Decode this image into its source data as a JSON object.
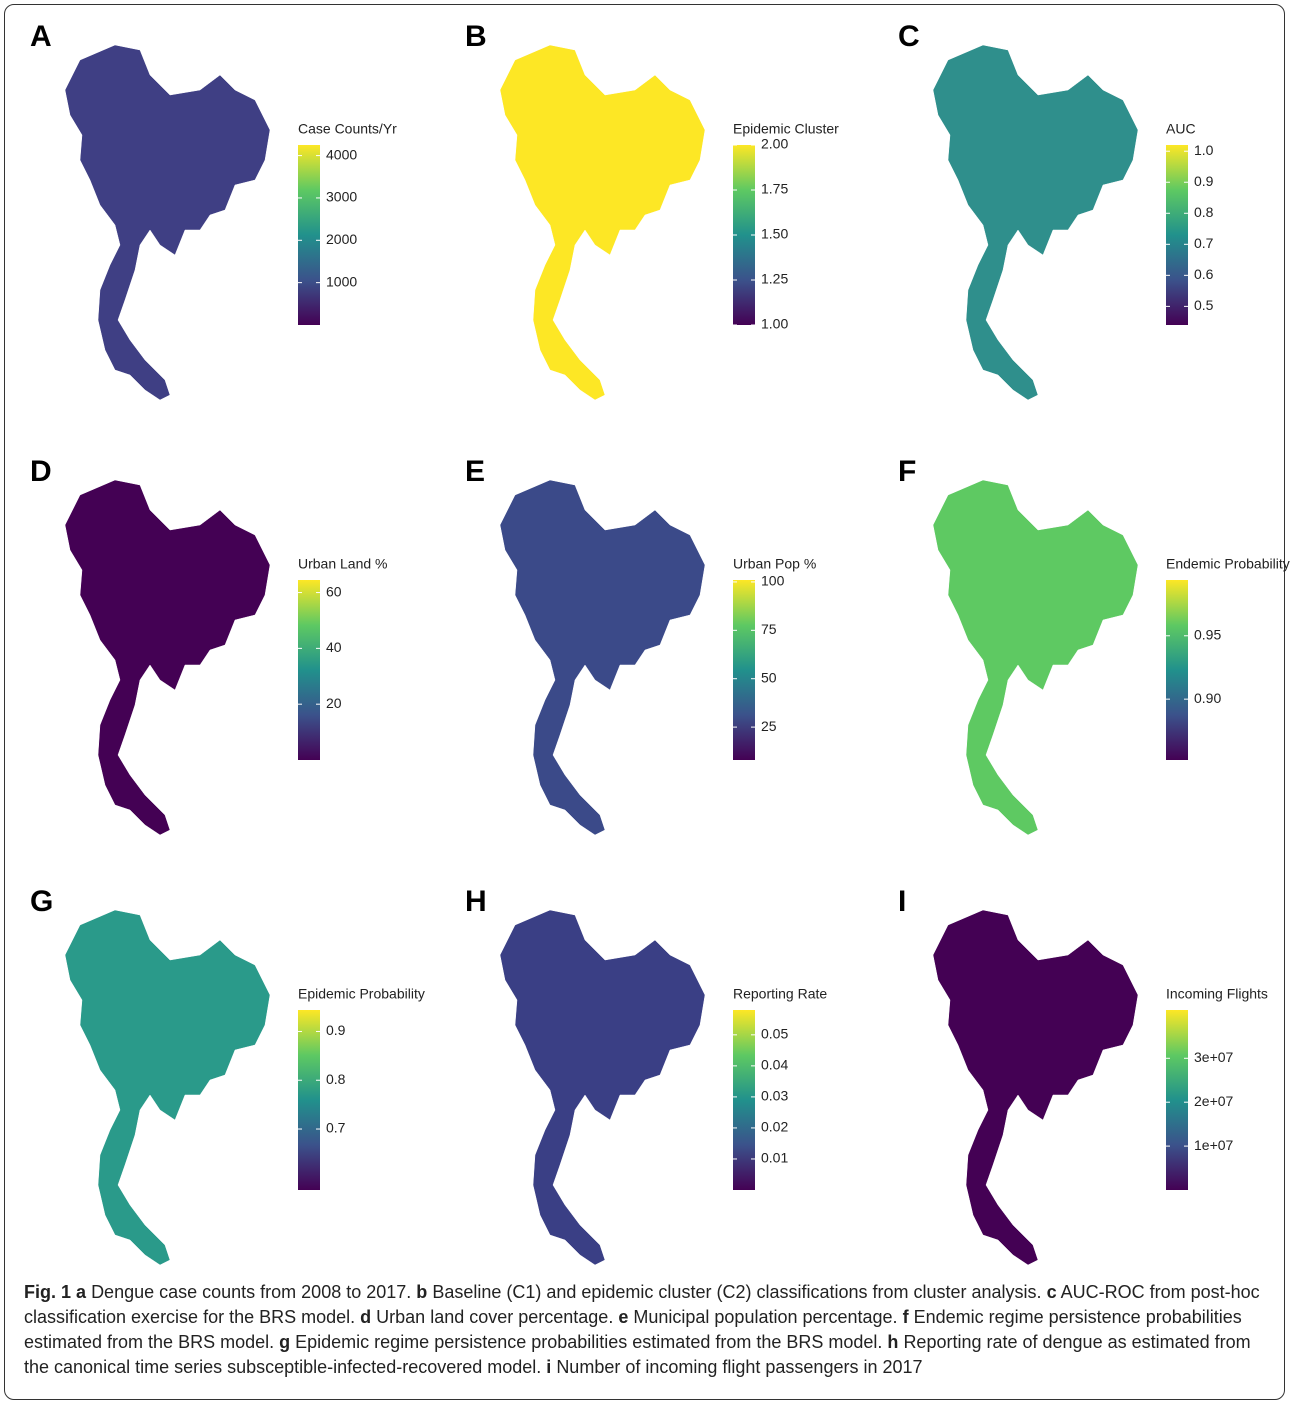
{
  "panels": [
    {
      "label": "A",
      "legend_title": "Case Counts/Yr",
      "lim": [
        0,
        4250
      ],
      "ticks": [
        1000,
        2000,
        3000,
        4000
      ]
    },
    {
      "label": "B",
      "legend_title": "Epidemic Cluster",
      "lim": [
        1,
        2
      ],
      "ticks": [
        {
          "value": 1,
          "label": "1.00"
        },
        1.25,
        {
          "value": 1.5,
          "label": "1.50"
        },
        1.75,
        {
          "value": 2,
          "label": "2.00"
        }
      ]
    },
    {
      "label": "C",
      "legend_title": "AUC",
      "lim": [
        0.44,
        1.02
      ],
      "ticks": [
        0.5,
        0.6,
        0.7,
        0.8,
        0.9,
        {
          "value": 1,
          "label": "1.0"
        }
      ]
    },
    {
      "label": "D",
      "legend_title": "Urban Land %",
      "lim": [
        0,
        64.5
      ],
      "ticks": [
        20,
        40,
        60
      ]
    },
    {
      "label": "E",
      "legend_title": "Urban Pop %",
      "lim": [
        8,
        101
      ],
      "ticks": [
        25,
        50,
        75,
        100
      ]
    },
    {
      "label": "F",
      "legend_title": "Endemic Probability",
      "lim": [
        0.852,
        0.994
      ],
      "ticks": [
        {
          "value": 0.9,
          "label": "0.90"
        },
        0.95
      ]
    },
    {
      "label": "G",
      "legend_title": "Epidemic Probability",
      "lim": [
        0.575,
        0.944
      ],
      "ticks": [
        0.7,
        0.8,
        0.9
      ]
    },
    {
      "label": "H",
      "legend_title": "Reporting Rate",
      "lim": [
        0,
        0.058
      ],
      "ticks": [
        0.01,
        0.02,
        0.03,
        0.04,
        0.05
      ]
    },
    {
      "label": "I",
      "legend_title": "Incoming Flights",
      "lim": [
        0,
        41000000
      ],
      "ticks": [
        {
          "value": 10000000,
          "label": "1e+07"
        },
        {
          "value": 20000000,
          "label": "2e+07"
        },
        {
          "value": 30000000,
          "label": "3e+07"
        }
      ]
    }
  ],
  "caption": {
    "label": "Fig. 1",
    "items": [
      {
        "letter": "a",
        "text": "Dengue case counts from 2008 to 2017."
      },
      {
        "letter": "b",
        "text": "Baseline (C1) and epidemic cluster (C2) classifications from cluster analysis."
      },
      {
        "letter": "c",
        "text": "AUC-ROC from post-hoc classification exercise for the BRS model."
      },
      {
        "letter": "d",
        "text": "Urban land cover percentage."
      },
      {
        "letter": "e",
        "text": "Municipal population percentage."
      },
      {
        "letter": "f",
        "text": "Endemic regime persistence probabilities estimated from the BRS model."
      },
      {
        "letter": "g",
        "text": "Epidemic regime persistence probabilities estimated from the BRS model."
      },
      {
        "letter": "h",
        "text": "Reporting rate of dengue as estimated from the canonical time series subsceptible-infected-recovered model."
      },
      {
        "letter": "i",
        "text": "Number of incoming flight passengers in 2017"
      }
    ]
  }
}
